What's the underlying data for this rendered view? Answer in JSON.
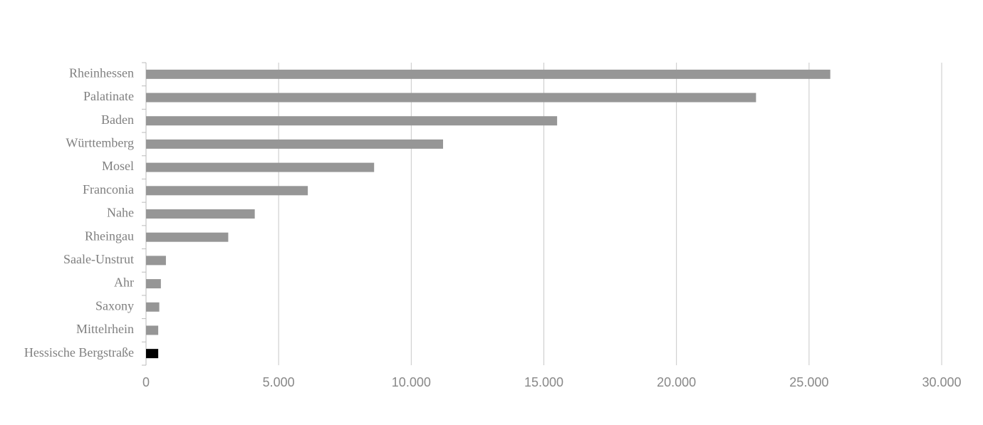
{
  "chart_data": {
    "type": "hbar",
    "categories": [
      "Rheinhessen",
      "Palatinate",
      "Baden",
      "Württemberg",
      "Mosel",
      "Franconia",
      "Nahe",
      "Rheingau",
      "Saale-Unstrut",
      "Ahr",
      "Saxony",
      "Mittelrhein",
      "Hessische Bergstraße"
    ],
    "values": [
      25800,
      23000,
      15500,
      11200,
      8600,
      6100,
      4100,
      3100,
      750,
      560,
      500,
      460,
      460
    ],
    "colors": [
      "#969696",
      "#969696",
      "#969696",
      "#969696",
      "#969696",
      "#969696",
      "#969696",
      "#969696",
      "#969696",
      "#969696",
      "#969696",
      "#969696",
      "#000000"
    ],
    "xlim": [
      0,
      30000
    ],
    "xticks": [
      0,
      {
        "value": 5000,
        "label": "5.000"
      },
      {
        "value": 10000,
        "label": "10.000"
      },
      {
        "value": 15000,
        "label": "15.000"
      },
      {
        "value": 20000,
        "label": "20.000"
      },
      {
        "value": 25000,
        "label": "25.000"
      },
      {
        "value": 30000,
        "label": "30.000"
      }
    ],
    "grid": true
  }
}
